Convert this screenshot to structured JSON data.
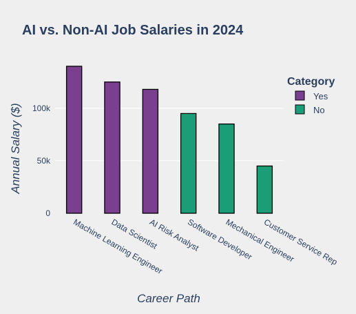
{
  "chart_data": {
    "type": "bar",
    "title": "AI vs. Non-AI Job Salaries in 2024",
    "xlabel": "Career Path",
    "ylabel": "Annual Salary ($)",
    "ylim": [
      0,
      140000
    ],
    "yticks": [
      {
        "value": 0,
        "label": "0"
      },
      {
        "value": 50000,
        "label": "50k"
      },
      {
        "value": 100000,
        "label": "100k"
      }
    ],
    "grid": true,
    "legend": {
      "title": "Category",
      "placement": "top-right",
      "entries": [
        {
          "name": "Yes",
          "color": "#7b3f8f"
        },
        {
          "name": "No",
          "color": "#1b9e77"
        }
      ]
    },
    "categories": [
      "Machine Learning Engineer",
      "Data Scientist",
      "AI Risk Analyst",
      "Software Developer",
      "Mechanical Engineer",
      "Customer Service Rep"
    ],
    "series": [
      {
        "name": "Yes",
        "color": "#7b3f8f",
        "values": [
          140000,
          125000,
          118000,
          null,
          null,
          null
        ]
      },
      {
        "name": "No",
        "color": "#1b9e77",
        "values": [
          null,
          null,
          null,
          95000,
          85000,
          45000
        ]
      }
    ]
  }
}
